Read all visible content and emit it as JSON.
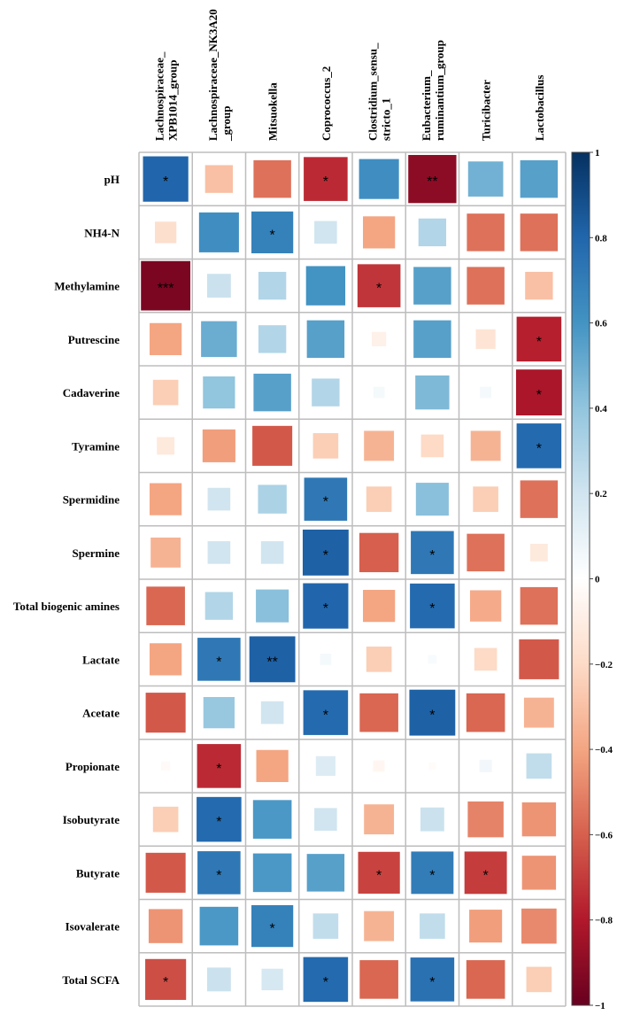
{
  "chart_data": {
    "type": "heatmap",
    "subtype": "correlation square-size plot",
    "columns": [
      [
        "Lachnospiraceae_",
        "XPB1014_group"
      ],
      [
        "Lachnospiraceae_NK3A20",
        "_group"
      ],
      [
        "Mitsuokella"
      ],
      [
        "Coprococcus_2"
      ],
      [
        "Clostridium_sensu_",
        "stricto_1"
      ],
      [
        "Eubacterium_",
        "ruminantium_group"
      ],
      [
        "Turicibacter"
      ],
      [
        "Lactobacillus"
      ]
    ],
    "rows": [
      "pH",
      "NH4-N",
      "Methylamine",
      "Putrescine",
      "Cadaverine",
      "Tyramine",
      "Spermidine",
      "Spermine",
      "Total biogenic amines",
      "Lactate",
      "Acetate",
      "Propionate",
      "Isobutyrate",
      "Butyrate",
      "Isovalerate",
      "Total SCFA"
    ],
    "values": [
      [
        0.8,
        -0.3,
        -0.55,
        -0.75,
        0.62,
        -0.9,
        0.48,
        0.55
      ],
      [
        -0.18,
        0.62,
        0.68,
        0.2,
        -0.4,
        0.3,
        -0.55,
        -0.55
      ],
      [
        -0.95,
        0.22,
        0.3,
        0.6,
        -0.72,
        0.55,
        -0.55,
        -0.3
      ],
      [
        -0.4,
        0.5,
        0.3,
        0.55,
        -0.08,
        0.55,
        -0.15,
        -0.78
      ],
      [
        -0.25,
        0.4,
        0.55,
        0.3,
        0.05,
        0.45,
        0.05,
        -0.82
      ],
      [
        -0.12,
        -0.42,
        -0.62,
        -0.25,
        -0.35,
        -0.2,
        -0.35,
        0.78
      ],
      [
        -0.4,
        0.2,
        0.32,
        0.72,
        -0.25,
        0.42,
        -0.25,
        -0.55
      ],
      [
        -0.35,
        0.2,
        0.2,
        0.82,
        -0.6,
        0.72,
        -0.55,
        -0.12
      ],
      [
        -0.58,
        0.3,
        0.42,
        0.8,
        -0.4,
        0.78,
        -0.38,
        -0.55
      ],
      [
        -0.4,
        0.72,
        0.82,
        0.05,
        -0.25,
        0.03,
        -0.2,
        -0.62
      ],
      [
        -0.62,
        0.38,
        0.2,
        0.78,
        -0.58,
        0.82,
        -0.58,
        -0.35
      ],
      [
        -0.03,
        -0.75,
        -0.4,
        0.15,
        -0.05,
        -0.02,
        0.06,
        0.25
      ],
      [
        -0.25,
        0.78,
        0.58,
        0.2,
        -0.35,
        0.22,
        -0.5,
        -0.45
      ],
      [
        -0.62,
        0.72,
        0.58,
        0.55,
        -0.68,
        0.7,
        -0.7,
        -0.45
      ],
      [
        -0.45,
        0.58,
        0.68,
        0.25,
        -0.35,
        0.25,
        -0.42,
        -0.48
      ],
      [
        -0.65,
        0.22,
        0.18,
        0.78,
        -0.58,
        0.75,
        -0.58,
        -0.25
      ]
    ],
    "significance": [
      [
        "*",
        "",
        "",
        "*",
        "",
        "**",
        "",
        ""
      ],
      [
        "",
        "",
        "*",
        "",
        "",
        "",
        "",
        ""
      ],
      [
        "***",
        "",
        "",
        "",
        "*",
        "",
        "",
        ""
      ],
      [
        "",
        "",
        "",
        "",
        "",
        "",
        "",
        "*"
      ],
      [
        "",
        "",
        "",
        "",
        "",
        "",
        "",
        "*"
      ],
      [
        "",
        "",
        "",
        "",
        "",
        "",
        "",
        "*"
      ],
      [
        "",
        "",
        "",
        "*",
        "",
        "",
        "",
        ""
      ],
      [
        "",
        "",
        "",
        "*",
        "",
        "*",
        "",
        ""
      ],
      [
        "",
        "",
        "",
        "*",
        "",
        "*",
        "",
        ""
      ],
      [
        "",
        "*",
        "**",
        "",
        "",
        "",
        "",
        ""
      ],
      [
        "",
        "",
        "",
        "*",
        "",
        "*",
        "",
        ""
      ],
      [
        "",
        "*",
        "",
        "",
        "",
        "",
        "",
        ""
      ],
      [
        "",
        "*",
        "",
        "",
        "",
        "",
        "",
        ""
      ],
      [
        "",
        "*",
        "",
        "",
        "*",
        "*",
        "*",
        ""
      ],
      [
        "",
        "",
        "*",
        "",
        "",
        "",
        "",
        ""
      ],
      [
        "*",
        "",
        "",
        "*",
        "",
        "*",
        "",
        ""
      ]
    ],
    "colorbar": {
      "range": [
        -1,
        1
      ],
      "ticks": [
        "1",
        "0.8",
        "0.6",
        "0.4",
        "0.2",
        "0",
        "−0.2",
        "−0.4",
        "−0.6",
        "−0.8",
        "−1"
      ],
      "colors": [
        "#67001f",
        "#b2182b",
        "#d6604d",
        "#f4a582",
        "#fddbc7",
        "#ffffff",
        "#d1e5f0",
        "#92c5de",
        "#4393c3",
        "#2166ac",
        "#053061"
      ]
    }
  }
}
